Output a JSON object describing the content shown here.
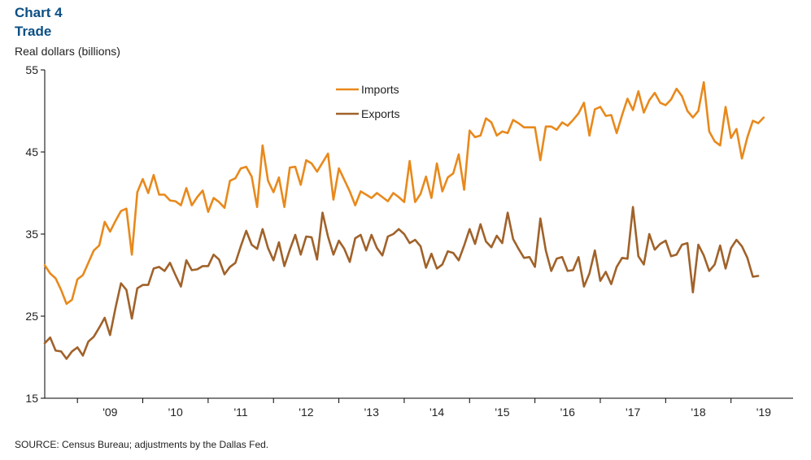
{
  "header": {
    "chart_number": "Chart 4",
    "title": "Trade",
    "ylabel": "Real dollars (billions)"
  },
  "footer": {
    "source": "SOURCE: Census Bureau; adjustments by the Dallas Fed."
  },
  "colors": {
    "imports": "#e8891c",
    "exports": "#a0622a",
    "axis": "#000000"
  },
  "chart_data": {
    "type": "line",
    "title": "Trade",
    "ylabel": "Real dollars (billions)",
    "ylim": [
      15,
      55
    ],
    "yticks": [
      15,
      25,
      35,
      45,
      55
    ],
    "xlim": [
      2008.5,
      2019.95
    ],
    "x_tick_labels": [
      "'09",
      "'10",
      "'11",
      "'12",
      "'13",
      "'14",
      "'15",
      "'16",
      "'17",
      "'18",
      "'19"
    ],
    "grid": false,
    "legend": "top-center",
    "series": [
      {
        "name": "Imports",
        "start": 2008.5,
        "step_months": 1,
        "values": [
          31.2,
          30.2,
          29.6,
          28.2,
          26.5,
          27.0,
          29.5,
          30.0,
          31.5,
          33.0,
          33.6,
          36.5,
          35.3,
          36.6,
          37.8,
          38.1,
          32.5,
          40.1,
          41.7,
          40.0,
          42.2,
          39.8,
          39.8,
          39.1,
          39.0,
          38.5,
          40.6,
          38.5,
          39.5,
          40.3,
          37.7,
          39.4,
          38.9,
          38.2,
          41.5,
          41.8,
          43.0,
          43.2,
          42.0,
          38.3,
          45.8,
          41.5,
          40.1,
          41.9,
          38.3,
          43.1,
          43.2,
          41.0,
          44.0,
          43.6,
          42.6,
          43.7,
          44.8,
          39.2,
          43.0,
          41.6,
          40.2,
          38.5,
          40.2,
          39.8,
          39.4,
          40.0,
          39.5,
          39.0,
          40.0,
          39.5,
          38.9,
          43.9,
          38.9,
          39.9,
          42.0,
          39.4,
          43.6,
          40.2,
          41.9,
          42.4,
          44.7,
          40.4,
          47.6,
          46.8,
          47.0,
          49.1,
          48.6,
          47.0,
          47.5,
          47.3,
          48.9,
          48.5,
          48.0,
          48.0,
          48.0,
          44.0,
          48.1,
          48.1,
          47.7,
          48.6,
          48.2,
          48.9,
          49.7,
          51.0,
          47.0,
          50.2,
          50.5,
          49.4,
          49.5,
          47.3,
          49.5,
          51.5,
          50.1,
          52.4,
          49.8,
          51.3,
          52.2,
          51.0,
          50.7,
          51.4,
          52.7,
          51.8,
          50.0,
          49.2,
          50.0,
          53.5,
          47.5,
          46.3,
          45.8,
          50.5,
          46.7,
          47.8,
          44.2,
          46.8,
          48.8,
          48.5,
          49.2
        ]
      },
      {
        "name": "Exports",
        "start": 2008.5,
        "step_months": 1,
        "values": [
          21.7,
          22.4,
          20.8,
          20.7,
          19.8,
          20.7,
          21.2,
          20.2,
          21.9,
          22.5,
          23.6,
          24.8,
          22.7,
          26.0,
          29.0,
          28.2,
          24.7,
          28.4,
          28.8,
          28.8,
          30.8,
          31.0,
          30.5,
          31.5,
          30.0,
          28.6,
          31.8,
          30.6,
          30.7,
          31.1,
          31.1,
          32.5,
          31.9,
          30.1,
          31.0,
          31.5,
          33.5,
          35.4,
          33.7,
          33.2,
          35.6,
          33.3,
          31.8,
          34.0,
          31.1,
          33.1,
          34.9,
          32.5,
          34.7,
          34.6,
          31.9,
          37.6,
          34.7,
          32.5,
          34.2,
          33.2,
          31.6,
          34.5,
          34.9,
          33.0,
          34.9,
          33.3,
          32.4,
          34.7,
          35.0,
          35.6,
          35.0,
          33.9,
          34.3,
          33.5,
          30.9,
          32.6,
          30.8,
          31.3,
          32.9,
          32.7,
          31.8,
          33.6,
          35.6,
          33.8,
          36.2,
          34.1,
          33.4,
          34.8,
          33.9,
          37.6,
          34.4,
          33.2,
          32.1,
          32.2,
          31.0,
          36.9,
          33.0,
          30.5,
          32.0,
          32.2,
          30.5,
          30.6,
          32.2,
          28.6,
          30.2,
          33.0,
          29.3,
          30.4,
          28.9,
          31.0,
          32.1,
          32.0,
          38.3,
          32.3,
          31.3,
          35.0,
          33.1,
          33.8,
          34.2,
          32.3,
          32.5,
          33.7,
          33.9,
          27.9,
          33.7,
          32.4,
          30.5,
          31.3,
          33.6,
          30.8,
          33.3,
          34.3,
          33.5,
          32.1,
          29.8,
          29.9
        ]
      }
    ]
  }
}
